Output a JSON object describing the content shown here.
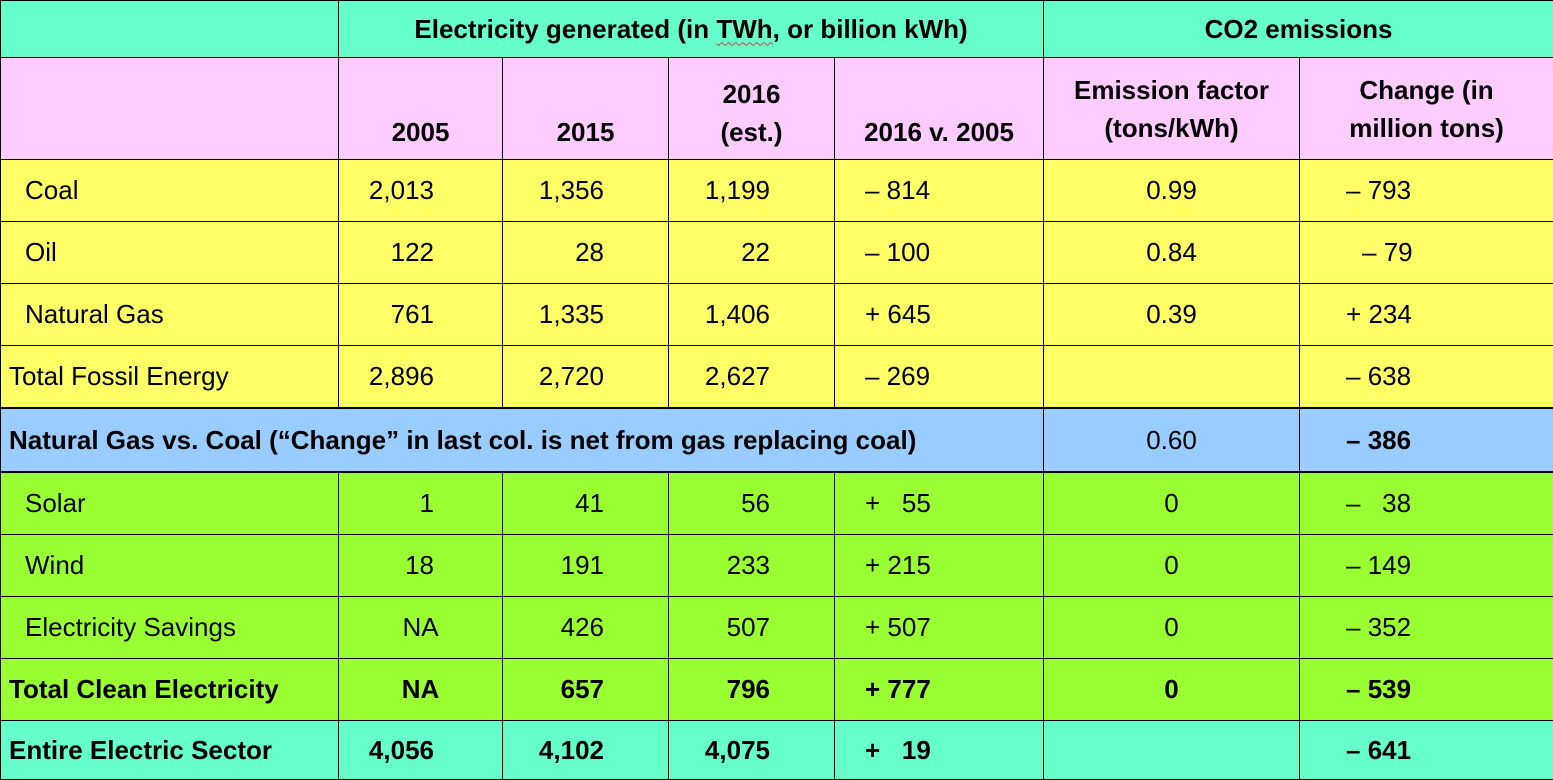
{
  "header": {
    "group_electricity_prefix": "Electricity generated (in ",
    "group_electricity_unit": "TWh",
    "group_electricity_suffix": ", or billion kWh)",
    "group_co2": "CO2 emissions",
    "col_2005": "2005",
    "col_2015": "2015",
    "col_2016_line1": "2016",
    "col_2016_line2": "(est.)",
    "col_change": "2016 v. 2005",
    "col_factor_line1": "Emission factor",
    "col_factor_line2": "(tons/kWh)",
    "col_co2_change_line1": "Change (in",
    "col_co2_change_line2": "million tons)"
  },
  "rows": {
    "coal": {
      "label": "Coal",
      "y2005": "2,013",
      "y2015": "1,356",
      "y2016": "1,199",
      "diff": "– 814",
      "factor": "0.99",
      "co2": "– 793"
    },
    "oil": {
      "label": "Oil",
      "y2005": "122",
      "y2015": "28",
      "y2016": "22",
      "diff": "– 100",
      "factor": "0.84",
      "co2": "– 79"
    },
    "gas": {
      "label": "Natural Gas",
      "y2005": "761",
      "y2015": "1,335",
      "y2016": "1,406",
      "diff": "+ 645",
      "factor": "0.39",
      "co2": "+ 234"
    },
    "fossil_total": {
      "label": "Total Fossil Energy",
      "y2005": "2,896",
      "y2015": "2,720",
      "y2016": "2,627",
      "diff": "– 269",
      "factor": "",
      "co2": "– 638"
    },
    "gas_vs_coal": {
      "label": "Natural Gas vs. Coal (“Change” in last col. is net from gas replacing coal)",
      "factor": "0.60",
      "co2": "– 386"
    },
    "solar": {
      "label": "Solar",
      "y2005": "1",
      "y2015": "41",
      "y2016": "56",
      "diff": "+   55",
      "factor": "0",
      "co2": "–   38"
    },
    "wind": {
      "label": "Wind",
      "y2005": "18",
      "y2015": "191",
      "y2016": "233",
      "diff": "+ 215",
      "factor": "0",
      "co2": "– 149"
    },
    "savings": {
      "label": "Electricity Savings",
      "y2005": "NA",
      "y2015": "426",
      "y2016": "507",
      "diff": "+ 507",
      "factor": "0",
      "co2": "– 352"
    },
    "clean_total": {
      "label": "Total Clean Electricity",
      "y2005": "NA",
      "y2015": "657",
      "y2016": "796",
      "diff": "+ 777",
      "factor": "0",
      "co2": "– 539"
    },
    "sector_total": {
      "label": "Entire Electric Sector",
      "y2005": "4,056",
      "y2015": "4,102",
      "y2016": "4,075",
      "diff": "+   19",
      "factor": "",
      "co2": "– 641"
    }
  },
  "colors": {
    "header_teal": "#66ffcc",
    "header_pink": "#ffccff",
    "fossil_yellow": "#ffff66",
    "compare_blue": "#99ccff",
    "clean_green": "#99ff33"
  }
}
